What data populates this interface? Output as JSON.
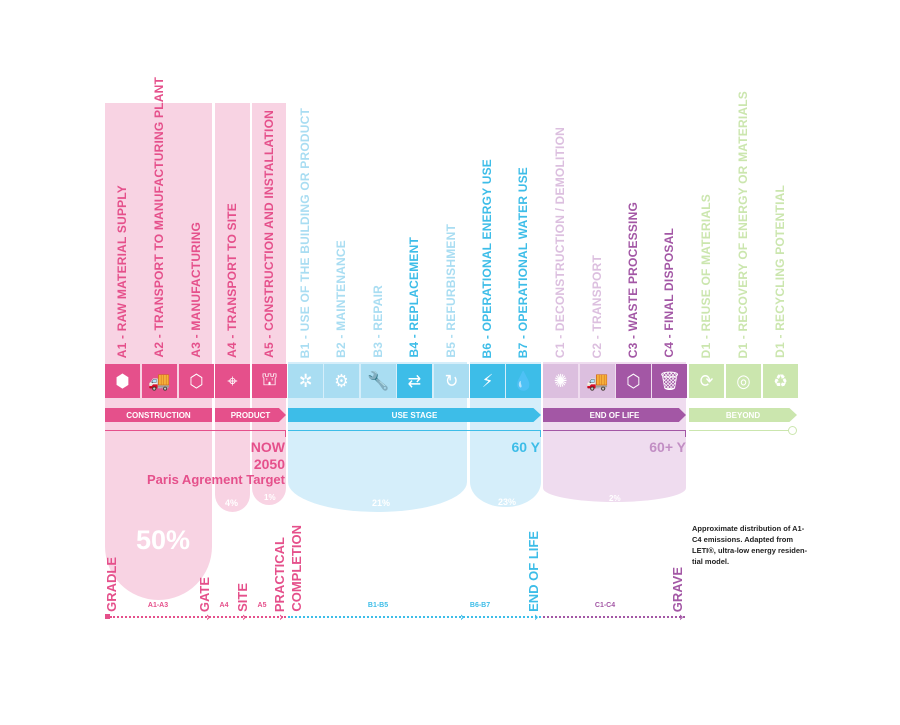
{
  "colors": {
    "pink": "#e5508b",
    "pink_light": "#f8d3e3",
    "blue": "#3dbde8",
    "blue_light": "#a9ddf2",
    "blue_bg": "#d5eefa",
    "purple": "#a357a5",
    "purple_light": "#dcbfdf",
    "purple_bg": "#efdcef",
    "green_light": "#cbe6ae"
  },
  "columns": [
    {
      "label": "A1 - RAW MATERIAL SUPPLY",
      "group": "A",
      "strong": true,
      "icon": "cubes-stack-icon",
      "glyph": "⬢"
    },
    {
      "label": "A2 - TRANSPORT TO MANUFACTURING PLANT",
      "group": "A",
      "strong": true,
      "icon": "truck-cube-icon",
      "glyph": "🚚"
    },
    {
      "label": "A3 - MANUFACTURING",
      "group": "A",
      "strong": true,
      "icon": "press-cube-icon",
      "glyph": "⬡"
    },
    {
      "label": "A4 - TRANSPORT TO SITE",
      "group": "A",
      "strong": true,
      "icon": "location-pin-icon",
      "glyph": "⌖"
    },
    {
      "label": "A5 - CONSTRUCTION AND INSTALLATION",
      "group": "A",
      "strong": true,
      "icon": "crane-icon",
      "glyph": "⛫"
    },
    {
      "label": "B1 - USE OF THE BUILDING OR PRODUCT",
      "group": "B",
      "strong": false,
      "icon": "cube-radiating-icon",
      "glyph": "✲"
    },
    {
      "label": "B2 - MAINTENANCE",
      "group": "B",
      "strong": false,
      "icon": "cube-gear-icon",
      "glyph": "⚙"
    },
    {
      "label": "B3 - REPAIR",
      "group": "B",
      "strong": false,
      "icon": "cube-wrench-icon",
      "glyph": "🔧"
    },
    {
      "label": "B4 - REPLACEMENT",
      "group": "B",
      "strong": true,
      "icon": "cube-swap-icon",
      "glyph": "⇄"
    },
    {
      "label": "B5 - REFURBISHMENT",
      "group": "B",
      "strong": false,
      "icon": "cube-refresh-icon",
      "glyph": "↻"
    },
    {
      "label": "B6 - OPERATIONAL ENERGY USE",
      "group": "B",
      "strong": true,
      "icon": "lightning-icon",
      "glyph": "⚡"
    },
    {
      "label": "B7 - OPERATIONAL WATER USE",
      "group": "B",
      "strong": true,
      "icon": "water-drop-icon",
      "glyph": "💧"
    },
    {
      "label": "C1 - DECONSTRUCTION / DEMOLITION",
      "group": "C",
      "strong": false,
      "icon": "demolition-icon",
      "glyph": "✺"
    },
    {
      "label": "C2 - TRANSPORT",
      "group": "C",
      "strong": false,
      "icon": "truck-cube-icon",
      "glyph": "🚚"
    },
    {
      "label": "C3 - WASTE PROCESSING",
      "group": "C",
      "strong": true,
      "icon": "press-cube-icon",
      "glyph": "⬡"
    },
    {
      "label": "C4 - FINAL DISPOSAL",
      "group": "C",
      "strong": true,
      "icon": "trash-cube-icon",
      "glyph": "🗑"
    },
    {
      "label": "D1 - REUSE OF MATERIALS",
      "group": "D",
      "strong": false,
      "icon": "cube-cycle-icon",
      "glyph": "⟳"
    },
    {
      "label": "D1 - RECOVERY OF ENERGY OR MATERIALS",
      "group": "D",
      "strong": false,
      "icon": "cube-circle-icon",
      "glyph": "◎"
    },
    {
      "label": "D1 - RECYCLING POTENTIAL",
      "group": "D",
      "strong": false,
      "icon": "recycle-icon",
      "glyph": "♻"
    }
  ],
  "stages": [
    {
      "label": "CONSTRUCTION"
    },
    {
      "label": "PRODUCT"
    },
    {
      "label": "USE STAGE"
    },
    {
      "label": "END OF LIFE"
    },
    {
      "label": "BEYOND"
    }
  ],
  "annotations": {
    "now": "NOW",
    "year": "2050",
    "paris": "Paris Agrement Target",
    "use_years": "60 Y",
    "eol_years": "60+ Y"
  },
  "percentages": {
    "a1_a3": "50%",
    "a4": "4%",
    "a5": "1%",
    "b1_b5": "21%",
    "b6_b7": "23%",
    "c1_c4": "2%"
  },
  "note": "Approximate distribution of A1-C4 emissions. Adapted from LETI®, ultra-low energy residen-tial model.",
  "timeline": {
    "markers": [
      "GRADLE",
      "GATE",
      "SITE",
      "PRACTICAL",
      "COMPLETION",
      "END OF LIFE",
      "GRAVE"
    ],
    "segments": [
      "A1-A3",
      "A4",
      "A5",
      "B1-B5",
      "B6-B7",
      "C1-C4"
    ]
  }
}
